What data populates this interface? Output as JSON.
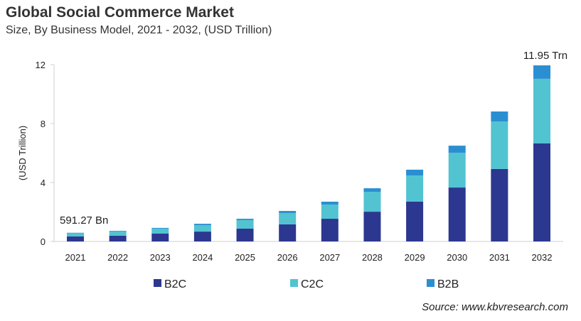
{
  "title": "Global Social Commerce Market",
  "subtitle": "Size, By Business Model, 2021 - 2032, (USD Trillion)",
  "source": "Source: www.kbvresearch.com",
  "chart_data": {
    "type": "bar",
    "stacked": true,
    "title": "Global Social Commerce Market",
    "subtitle": "Size, By Business Model, 2021 - 2032, (USD Trillion)",
    "xlabel": "",
    "ylabel": "(USD Trillion)",
    "ylim": [
      0,
      12
    ],
    "yticks": [
      0,
      4,
      8,
      12
    ],
    "grid": false,
    "legend_position": "bottom",
    "categories": [
      "2021",
      "2022",
      "2023",
      "2024",
      "2025",
      "2026",
      "2027",
      "2028",
      "2029",
      "2030",
      "2031",
      "2032"
    ],
    "series": [
      {
        "name": "B2C",
        "color": "#2c3790",
        "values": [
          0.34,
          0.39,
          0.53,
          0.67,
          0.87,
          1.16,
          1.54,
          2.02,
          2.7,
          3.66,
          4.92,
          6.65
        ]
      },
      {
        "name": "C2C",
        "color": "#52c3d0",
        "values": [
          0.22,
          0.29,
          0.34,
          0.44,
          0.58,
          0.77,
          0.96,
          1.35,
          1.78,
          2.36,
          3.22,
          4.39
        ]
      },
      {
        "name": "B2B",
        "color": "#2a8fd2",
        "values": [
          0.03,
          0.04,
          0.05,
          0.09,
          0.09,
          0.14,
          0.2,
          0.24,
          0.39,
          0.48,
          0.68,
          0.91
        ]
      }
    ],
    "annotations": [
      {
        "category": "2021",
        "text": "591.27 Bn"
      },
      {
        "category": "2032",
        "text": "11.95 Trn"
      }
    ]
  }
}
